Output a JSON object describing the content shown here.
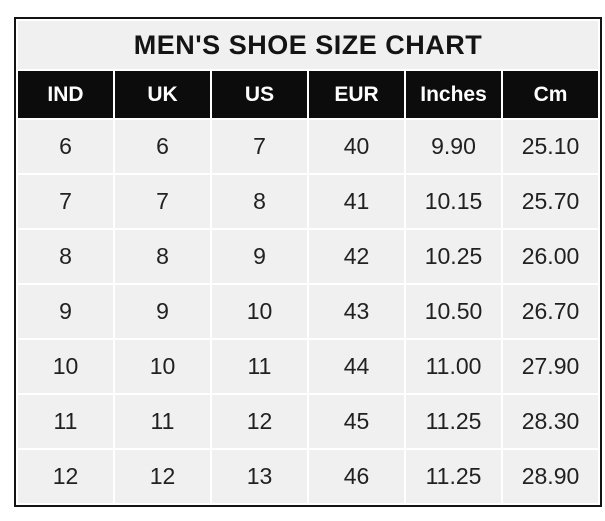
{
  "chart_data": {
    "type": "table",
    "title": "MEN'S SHOE SIZE CHART",
    "columns": [
      "IND",
      "UK",
      "US",
      "EUR",
      "Inches",
      "Cm"
    ],
    "rows": [
      [
        "6",
        "6",
        "7",
        "40",
        "9.90",
        "25.10"
      ],
      [
        "7",
        "7",
        "8",
        "41",
        "10.15",
        "25.70"
      ],
      [
        "8",
        "8",
        "9",
        "42",
        "10.25",
        "26.00"
      ],
      [
        "9",
        "9",
        "10",
        "43",
        "10.50",
        "26.70"
      ],
      [
        "10",
        "10",
        "11",
        "44",
        "11.00",
        "27.90"
      ],
      [
        "11",
        "11",
        "12",
        "45",
        "11.25",
        "28.30"
      ],
      [
        "12",
        "12",
        "13",
        "46",
        "11.25",
        "28.90"
      ]
    ]
  },
  "colors": {
    "outer_border": "#141414",
    "title_bg": "#f0f0f0",
    "title_text": "#141414",
    "header_bg": "#0c0c0c",
    "header_text": "#fdfdfd",
    "cell_bg": "#f0f0f0",
    "cell_text": "#212121",
    "grid_gap": "#ffffff",
    "page_bg": "#ffffff"
  }
}
